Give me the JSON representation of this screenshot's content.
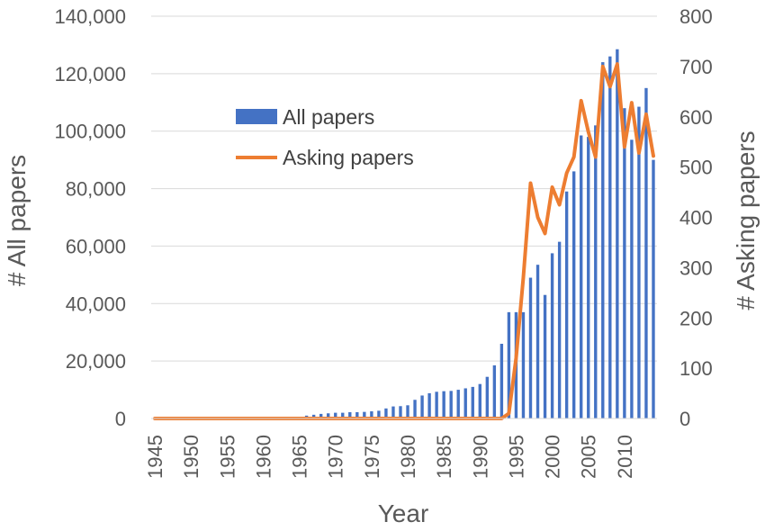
{
  "chart_data": {
    "type": "bar",
    "xlabel": "Year",
    "ylabel": "# All papers",
    "y2label": "# Asking papers",
    "x_tick_labels": [
      "1945",
      "1950",
      "1955",
      "1960",
      "1965",
      "1970",
      "1975",
      "1980",
      "1985",
      "1990",
      "1995",
      "2000",
      "2005",
      "2010"
    ],
    "ylim": [
      0,
      140000
    ],
    "y_ticks": [
      "0",
      "20,000",
      "40,000",
      "60,000",
      "80,000",
      "100,000",
      "120,000",
      "140,000"
    ],
    "y2lim": [
      0,
      800
    ],
    "y2_ticks": [
      "0",
      "100",
      "200",
      "300",
      "400",
      "500",
      "600",
      "700",
      "800"
    ],
    "grid": "horizontal",
    "legend_position": "upper-left inside",
    "x": [
      1945,
      1946,
      1947,
      1948,
      1949,
      1950,
      1951,
      1952,
      1953,
      1954,
      1955,
      1956,
      1957,
      1958,
      1959,
      1960,
      1961,
      1962,
      1963,
      1964,
      1965,
      1966,
      1967,
      1968,
      1969,
      1970,
      1971,
      1972,
      1973,
      1974,
      1975,
      1976,
      1977,
      1978,
      1979,
      1980,
      1981,
      1982,
      1983,
      1984,
      1985,
      1986,
      1987,
      1988,
      1989,
      1990,
      1991,
      1992,
      1993,
      1994,
      1995,
      1996,
      1997,
      1998,
      1999,
      2000,
      2001,
      2002,
      2003,
      2004,
      2005,
      2006,
      2007,
      2008,
      2009,
      2010,
      2011,
      2012,
      2013,
      2014
    ],
    "series": [
      {
        "name": "All papers",
        "type": "bar",
        "axis": "left",
        "color": "#4472C4",
        "values": [
          0,
          0,
          0,
          0,
          0,
          0,
          0,
          0,
          0,
          0,
          0,
          0,
          0,
          0,
          0,
          0,
          0,
          0,
          0,
          300,
          500,
          1000,
          1300,
          1600,
          1800,
          2000,
          2000,
          2200,
          2200,
          2300,
          2500,
          2700,
          3500,
          4200,
          4300,
          4600,
          6500,
          8000,
          8800,
          9300,
          9500,
          9600,
          10000,
          10500,
          11000,
          12000,
          14500,
          18500,
          26000,
          37000,
          37000,
          37000,
          49000,
          53500,
          43000,
          57500,
          61500,
          79000,
          86000,
          98500,
          98000,
          102000,
          124000,
          126000,
          128500,
          108000,
          97000,
          108500,
          115000,
          90000
        ]
      },
      {
        "name": "Asking papers",
        "type": "line",
        "axis": "right",
        "color": "#ED7D31",
        "values": [
          0,
          0,
          0,
          0,
          0,
          0,
          0,
          0,
          0,
          0,
          0,
          0,
          0,
          0,
          0,
          0,
          0,
          0,
          0,
          0,
          0,
          0,
          0,
          0,
          0,
          0,
          0,
          0,
          0,
          0,
          0,
          0,
          0,
          0,
          0,
          0,
          0,
          0,
          0,
          0,
          0,
          0,
          0,
          0,
          0,
          0,
          0,
          0,
          0,
          10,
          120,
          280,
          468,
          400,
          368,
          460,
          425,
          488,
          520,
          632,
          570,
          520,
          700,
          660,
          705,
          540,
          628,
          528,
          605,
          522
        ]
      }
    ]
  }
}
